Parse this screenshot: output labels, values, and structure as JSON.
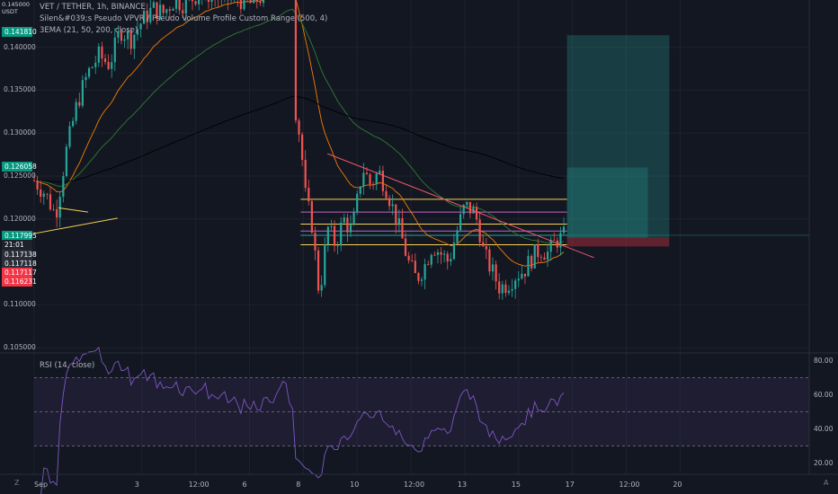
{
  "header": {
    "symbol_line": "VET / TETHER, 1h, BINANCE",
    "indicator_line": "Silen&#039;s Pseudo VPVR / Pseudo Volume Profile Custom Range (500, 4)",
    "ema_line": "3EMA (21, 50, 200, close)",
    "corner_price": "0.145000",
    "corner_currency": "USDT"
  },
  "rsi_label": "RSI (14, close)",
  "badges": [
    {
      "text": "0.141810",
      "color": "#089981",
      "price": 0.14181
    },
    {
      "text": "0.126058",
      "color": "#089981",
      "price": 0.126058
    },
    {
      "text": "0.117995",
      "color": "#089981",
      "price": 0.117995
    },
    {
      "text": "21:01",
      "color": "#1e222d",
      "price": 0.11695
    },
    {
      "text": "0.117138",
      "color": "#2a2e39",
      "price": 0.1159
    },
    {
      "text": "0.117118",
      "color": "#2a2e39",
      "price": 0.11485
    },
    {
      "text": "0.117117",
      "color": "#f23645",
      "price": 0.1138
    },
    {
      "text": "0.116231",
      "color": "#f23645",
      "price": 0.11275
    }
  ],
  "axis_icons": {
    "bottom_left": "Z",
    "bottom_right": "A"
  },
  "chart_data": {
    "type": "candlestick",
    "title": "VET / TETHER, 1h, BINANCE",
    "price_axis": {
      "ticks": [
        "0.140000",
        "0.135000",
        "0.130000",
        "0.125000",
        "0.120000",
        "0.110000",
        "0.105000"
      ],
      "tick_values": [
        0.14,
        0.135,
        0.13,
        0.125,
        0.12,
        0.11,
        0.105
      ],
      "ylim": [
        0.1045,
        0.1455
      ]
    },
    "rsi_axis": {
      "ticks": [
        "80.00",
        "60.00",
        "40.00",
        "20.00"
      ],
      "tick_values": [
        80,
        60,
        40,
        20
      ],
      "ylim": [
        14,
        84
      ],
      "bands": [
        70,
        50,
        30
      ]
    },
    "x_ticks": [
      "Sep",
      "3",
      "12:00",
      "6",
      "8",
      "10",
      "12:00",
      "13",
      "15",
      "17",
      "12:00",
      "20"
    ],
    "x_tick_positions": [
      0,
      4,
      6,
      8,
      10,
      12,
      14,
      16,
      18,
      20,
      22,
      24
    ],
    "x_range": [
      0,
      28.8
    ],
    "price_anchors": [
      [
        0.0,
        0.1245
      ],
      [
        0.4,
        0.123
      ],
      [
        0.8,
        0.1205
      ],
      [
        1.2,
        0.128
      ],
      [
        1.6,
        0.1335
      ],
      [
        2.0,
        0.137
      ],
      [
        2.4,
        0.139
      ],
      [
        2.8,
        0.138
      ],
      [
        3.2,
        0.142
      ],
      [
        3.6,
        0.141
      ],
      [
        4.0,
        0.143
      ],
      [
        4.4,
        0.1445
      ],
      [
        4.8,
        0.144
      ],
      [
        5.2,
        0.1455
      ],
      [
        5.6,
        0.145
      ],
      [
        6.0,
        0.146
      ],
      [
        6.5,
        0.1462
      ],
      [
        7.0,
        0.1455
      ],
      [
        7.5,
        0.1458
      ],
      [
        8.0,
        0.145
      ],
      [
        8.5,
        0.146
      ],
      [
        8.8,
        0.147
      ],
      [
        9.2,
        0.15
      ],
      [
        9.6,
        0.148
      ],
      [
        9.7,
        0.133
      ],
      [
        9.9,
        0.129
      ],
      [
        10.1,
        0.122
      ],
      [
        10.3,
        0.12
      ],
      [
        10.6,
        0.111
      ],
      [
        10.9,
        0.119
      ],
      [
        11.2,
        0.117
      ],
      [
        11.5,
        0.12
      ],
      [
        11.8,
        0.1185
      ],
      [
        12.0,
        0.122
      ],
      [
        12.2,
        0.126
      ],
      [
        12.5,
        0.124
      ],
      [
        12.8,
        0.1255
      ],
      [
        13.1,
        0.1235
      ],
      [
        13.3,
        0.1215
      ],
      [
        13.6,
        0.1185
      ],
      [
        13.9,
        0.115
      ],
      [
        14.2,
        0.113
      ],
      [
        14.5,
        0.1145
      ],
      [
        14.8,
        0.117
      ],
      [
        15.1,
        0.116
      ],
      [
        15.4,
        0.115
      ],
      [
        15.7,
        0.1185
      ],
      [
        16.0,
        0.1215
      ],
      [
        16.3,
        0.121
      ],
      [
        16.5,
        0.1195
      ],
      [
        16.7,
        0.116
      ],
      [
        17.0,
        0.114
      ],
      [
        17.3,
        0.112
      ],
      [
        17.6,
        0.1125
      ],
      [
        17.9,
        0.1135
      ],
      [
        18.2,
        0.114
      ],
      [
        18.5,
        0.1155
      ],
      [
        18.8,
        0.1165
      ],
      [
        19.1,
        0.116
      ],
      [
        19.4,
        0.1175
      ],
      [
        19.7,
        0.118
      ]
    ],
    "volume_profile_lines": [
      {
        "price": 0.1223,
        "color": "#f7d154"
      },
      {
        "price": 0.1208,
        "color": "#c264c8"
      },
      {
        "price": 0.1194,
        "color": "#f7d154"
      },
      {
        "price": 0.1186,
        "color": "#c264c8"
      },
      {
        "price": 0.1181,
        "color": "#26a69a"
      },
      {
        "price": 0.117,
        "color": "#f7d154"
      }
    ],
    "trendline": {
      "from": [
        10.9,
        0.1276
      ],
      "to": [
        20.8,
        0.1155
      ],
      "color": "#f0566b"
    },
    "position_box": {
      "x_start": 19.8,
      "x_end": 23.6,
      "entry": 0.1178,
      "target": 0.1414,
      "stop": 0.1168,
      "partial_x_end": 22.8,
      "partial_target": 0.126
    }
  }
}
